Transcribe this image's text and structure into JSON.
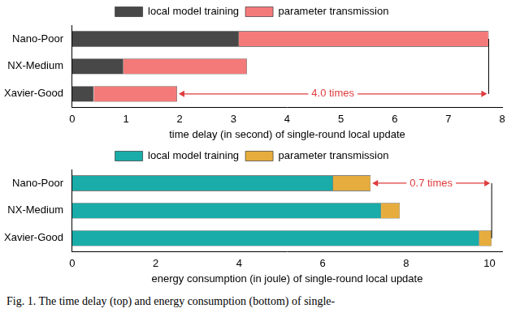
{
  "chart_data": [
    {
      "type": "bar",
      "orientation": "horizontal",
      "stacked": true,
      "grid": false,
      "legend": "top",
      "categories": [
        "Nano-Poor",
        "NX-Medium",
        "Xavier-Good"
      ],
      "series": [
        {
          "name": "local model training",
          "color": "#484848",
          "values": [
            3.1,
            0.95,
            0.4
          ]
        },
        {
          "name": "parameter transmission",
          "color": "#f47a7a",
          "values": [
            4.65,
            2.3,
            1.55
          ]
        }
      ],
      "x_label": "time delay (in second) of single-round local update",
      "xlim": [
        0,
        8
      ],
      "xticks": [
        0,
        1,
        2,
        3,
        4,
        5,
        6,
        7,
        8
      ],
      "annotations": [
        {
          "text": "4.0 times",
          "from": "Xavier-Good",
          "to": "Nano-Poor"
        }
      ]
    },
    {
      "type": "bar",
      "orientation": "horizontal",
      "stacked": true,
      "grid": false,
      "legend": "top",
      "categories": [
        "Nano-Poor",
        "NX-Medium",
        "Xavier-Good"
      ],
      "series": [
        {
          "name": "local model training",
          "color": "#1aaca8",
          "values": [
            6.25,
            7.4,
            9.75
          ]
        },
        {
          "name": "parameter transmission",
          "color": "#e6ad3e",
          "values": [
            0.9,
            0.45,
            0.3
          ]
        }
      ],
      "x_label": "energy consumption (in joule) of single-round local update",
      "xlim": [
        0,
        10.3
      ],
      "xticks": [
        0,
        2,
        4,
        6,
        8,
        10
      ],
      "annotations": [
        {
          "text": "0.7 times",
          "from": "Nano-Poor",
          "to": "Xavier-Good"
        }
      ]
    }
  ],
  "caption": "Fig. 1.   The time delay (top) and energy consumption (bottom) of single-"
}
